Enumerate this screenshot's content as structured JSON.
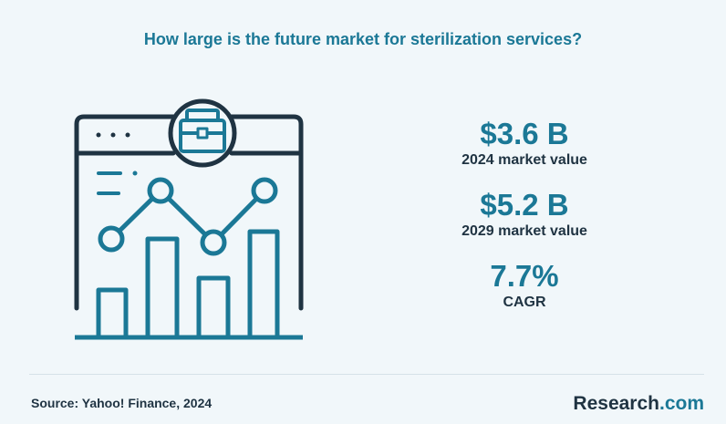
{
  "title": "How large is the future market for sterilization services?",
  "stats": [
    {
      "value": "$3.6 B",
      "label": "2024 market value"
    },
    {
      "value": "$5.2 B",
      "label": "2029 market value"
    },
    {
      "value": "7.7%",
      "label": "CAGR"
    }
  ],
  "source": "Source:  Yahoo! Finance, 2024",
  "logo": {
    "main": "Research",
    "accent": ".com"
  },
  "colors": {
    "accent": "#1b7896",
    "dark": "#1f3342",
    "background": "#f1f7fa"
  },
  "icons": [
    "browser-window-icon",
    "briefcase-icon",
    "bar-chart-icon",
    "line-trend-icon"
  ],
  "chart_data": {
    "type": "table",
    "title": "How large is the future market for sterilization services?",
    "rows": [
      {
        "metric": "2024 market value",
        "value": 3.6,
        "unit": "$B"
      },
      {
        "metric": "2029 market value",
        "value": 5.2,
        "unit": "$B"
      },
      {
        "metric": "CAGR",
        "value": 7.7,
        "unit": "%"
      }
    ]
  }
}
